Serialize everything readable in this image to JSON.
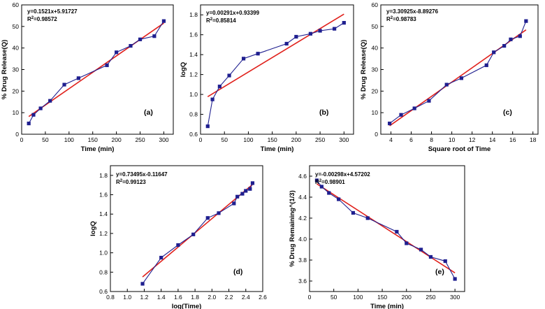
{
  "chart_data": [
    {
      "type": "line",
      "panel_label": "(a)",
      "xlabel": "Time (min)",
      "ylabel": "% Drug Release(Q)",
      "xlim": [
        0,
        320
      ],
      "ylim": [
        0,
        60
      ],
      "xticks": [
        0,
        50,
        100,
        150,
        200,
        250,
        300
      ],
      "yticks": [
        0,
        10,
        20,
        30,
        40,
        50,
        60
      ],
      "x": [
        15,
        25,
        40,
        60,
        90,
        120,
        180,
        200,
        230,
        250,
        280,
        300
      ],
      "values": [
        5.0,
        9.0,
        12.0,
        15.5,
        23.0,
        26.0,
        32.0,
        38.0,
        41.0,
        44.0,
        45.5,
        52.5
      ],
      "fit": {
        "slope": 0.1521,
        "intercept": 5.91727,
        "x_range": [
          15,
          300
        ]
      },
      "equation": "y=0.1521x+5.91727",
      "r2_value": "=0.98572"
    },
    {
      "type": "line",
      "panel_label": "(b)",
      "xlabel": "Time (min)",
      "ylabel": "logQ",
      "xlim": [
        0,
        320
      ],
      "ylim": [
        0.6,
        1.9
      ],
      "xticks": [
        0,
        50,
        100,
        150,
        200,
        250,
        300
      ],
      "yticks": [
        0.6,
        0.8,
        1.0,
        1.2,
        1.4,
        1.6,
        1.8
      ],
      "x": [
        15,
        25,
        40,
        60,
        90,
        120,
        180,
        200,
        230,
        250,
        280,
        300
      ],
      "values": [
        0.68,
        0.95,
        1.08,
        1.19,
        1.36,
        1.41,
        1.51,
        1.58,
        1.61,
        1.64,
        1.66,
        1.72
      ],
      "fit": {
        "slope": 0.00291,
        "intercept": 0.93399,
        "x_range": [
          15,
          300
        ]
      },
      "equation": "y=0.00291x+0.93399",
      "r2_value": "=0.85814"
    },
    {
      "type": "line",
      "panel_label": "(c)",
      "xlabel": "Square root of Time",
      "ylabel": "% Drug Release(Q)",
      "xlim": [
        3,
        18.5
      ],
      "ylim": [
        0,
        60
      ],
      "xticks": [
        4,
        6,
        8,
        10,
        12,
        14,
        16,
        18
      ],
      "yticks": [
        0,
        10,
        20,
        30,
        40,
        50,
        60
      ],
      "x": [
        3.87,
        5.0,
        6.32,
        7.75,
        9.49,
        10.95,
        13.42,
        14.14,
        15.17,
        15.81,
        16.73,
        17.32
      ],
      "values": [
        5.0,
        9.0,
        12.0,
        15.5,
        23.0,
        26.0,
        32.0,
        38.0,
        41.0,
        44.0,
        45.5,
        52.5
      ],
      "fit": {
        "slope": 3.30925,
        "intercept": -8.89276,
        "x_range": [
          3.87,
          17.32
        ]
      },
      "equation": "y=3.30925x-8.89276",
      "r2_value": "=0.98783"
    },
    {
      "type": "line",
      "panel_label": "(d)",
      "xlabel": "log(Time)",
      "ylabel": "logQ",
      "xlim": [
        0.8,
        2.6
      ],
      "ylim": [
        0.6,
        1.9
      ],
      "xticks": [
        0.8,
        1.0,
        1.2,
        1.4,
        1.6,
        1.8,
        2.0,
        2.2,
        2.4,
        2.6
      ],
      "yticks": [
        0.6,
        0.8,
        1.0,
        1.2,
        1.4,
        1.6,
        1.8
      ],
      "x": [
        1.18,
        1.4,
        1.6,
        1.78,
        1.95,
        2.08,
        2.26,
        2.3,
        2.36,
        2.4,
        2.45,
        2.48
      ],
      "values": [
        0.68,
        0.95,
        1.08,
        1.19,
        1.36,
        1.41,
        1.51,
        1.58,
        1.61,
        1.64,
        1.66,
        1.72
      ],
      "fit": {
        "slope": 0.73495,
        "intercept": -0.11647,
        "x_range": [
          1.18,
          2.48
        ]
      },
      "equation": "y=0.73495x-0.11647",
      "r2_value": "=0.99123"
    },
    {
      "type": "line",
      "panel_label": "(e)",
      "xlabel": "Time (min)",
      "ylabel": "% Drug Remaining^(1/3)",
      "xlim": [
        0,
        320
      ],
      "ylim": [
        3.5,
        4.7
      ],
      "xticks": [
        0,
        50,
        100,
        150,
        200,
        250,
        300
      ],
      "yticks": [
        3.6,
        3.8,
        4.0,
        4.2,
        4.4,
        4.6
      ],
      "x": [
        15,
        25,
        40,
        60,
        90,
        120,
        180,
        200,
        230,
        250,
        280,
        300
      ],
      "values": [
        4.56,
        4.5,
        4.44,
        4.38,
        4.25,
        4.2,
        4.07,
        3.96,
        3.9,
        3.83,
        3.79,
        3.62
      ],
      "fit": {
        "slope": -0.00298,
        "intercept": 4.57202,
        "x_range": [
          15,
          300
        ]
      },
      "equation": "y=-0.00298x+4.57202",
      "r2_value": "=0.98901"
    }
  ],
  "r2_symbol": "R",
  "r2_superscript": "2",
  "colors": {
    "data": "#1f1f8f",
    "fit": "#e0201b",
    "axis": "#000000"
  }
}
